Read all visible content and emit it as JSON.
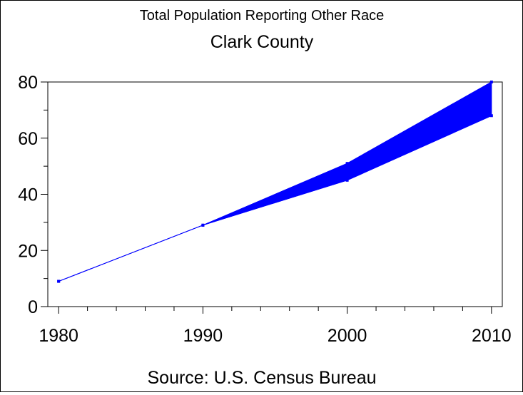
{
  "chart_data": {
    "type": "area",
    "title": "Total Population Reporting Other Race",
    "subtitle": "Clark County",
    "footnote": "Source: U.S. Census Bureau",
    "xlabel": "",
    "ylabel": "",
    "x": [
      1980,
      1990,
      2000,
      2010
    ],
    "xlim": [
      1979.25,
      2010.75
    ],
    "ylim": [
      0,
      80
    ],
    "x_ticks": [
      "1980",
      "1990",
      "2000",
      "2010"
    ],
    "y_ticks": [
      "0",
      "20",
      "40",
      "60",
      "80"
    ],
    "series": [
      {
        "name": "upper",
        "values": [
          9,
          29,
          51,
          80
        ]
      },
      {
        "name": "lower",
        "values": [
          9,
          29,
          45,
          68
        ]
      }
    ],
    "color": "#0000ff",
    "grid": false
  }
}
